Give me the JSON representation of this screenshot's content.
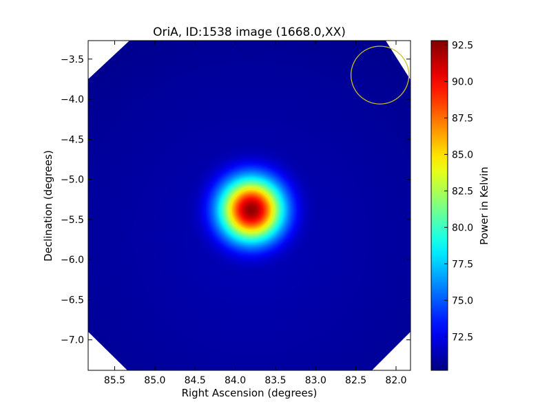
{
  "chart_data": {
    "type": "heatmap",
    "title": "OriA, ID:1538 image (1668.0,XX)",
    "xlabel": "Right Ascension (degrees)",
    "ylabel": "Declination (degrees)",
    "xlim": [
      85.83,
      81.82
    ],
    "ylim": [
      -7.38,
      -3.27
    ],
    "x_ticks": [
      85.5,
      85.0,
      84.5,
      84.0,
      83.5,
      83.0,
      82.5,
      82.0
    ],
    "x_tick_labels": [
      "85.5",
      "85.0",
      "84.5",
      "84.0",
      "83.5",
      "83.0",
      "82.5",
      "82.0"
    ],
    "y_ticks": [
      -3.5,
      -4.0,
      -4.5,
      -5.0,
      -5.5,
      -6.0,
      -6.5,
      -7.0
    ],
    "y_tick_labels": [
      "−3.5",
      "−4.0",
      "−4.5",
      "−5.0",
      "−5.5",
      "−6.0",
      "−6.5",
      "−7.0"
    ],
    "colorbar": {
      "label": "Power in Kelvin",
      "min": 70.2,
      "max": 92.8,
      "colormap": "jet",
      "ticks": [
        72.5,
        75.0,
        77.5,
        80.0,
        82.5,
        85.0,
        87.5,
        90.0,
        92.5
      ],
      "tick_labels": [
        "72.5",
        "75.0",
        "77.5",
        "80.0",
        "82.5",
        "85.0",
        "87.5",
        "90.0",
        "92.5"
      ]
    },
    "source": {
      "ra": 83.8,
      "dec": -5.38,
      "peak_value": 92.5,
      "background_value": 71.0,
      "sigma_deg": 0.27
    },
    "beam_marker": {
      "ra": 82.2,
      "dec": -3.7,
      "radius_deg": 0.36,
      "color": "#c8c020"
    },
    "colors": {
      "masked_corners": "#ffffff"
    }
  }
}
